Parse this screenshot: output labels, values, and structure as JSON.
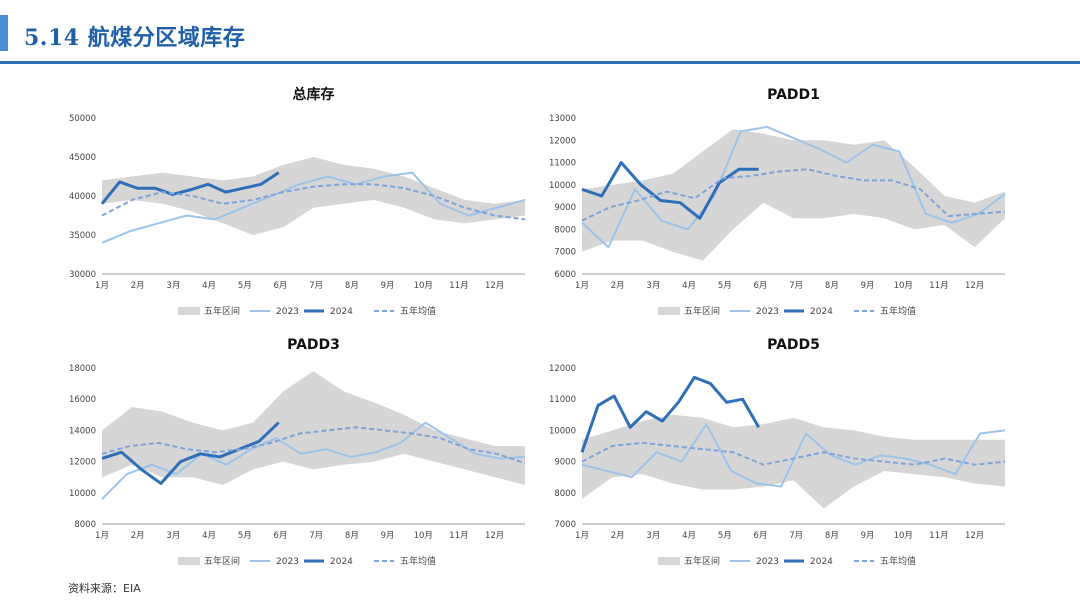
{
  "header": {
    "title": "5.14 航煤分区域库存"
  },
  "source": "资料来源：EIA",
  "legend_labels": [
    "五年区间",
    "2023",
    "2024",
    "五年均值"
  ],
  "colors": {
    "accent": "#1f5fa8",
    "band": "#d6d6d6",
    "s2023": "#9cc3e8",
    "s2024": "#2f6fb8",
    "avg": "#7ea3d8"
  },
  "chart_data": [
    {
      "type": "line",
      "title": "总库存",
      "x_labels": [
        "1月",
        "2月",
        "3月",
        "4月",
        "5月",
        "6月",
        "7月",
        "8月",
        "9月",
        "10月",
        "11月",
        "12月"
      ],
      "ylim": [
        30000,
        50000
      ],
      "yticks": [
        30000,
        35000,
        40000,
        45000,
        50000
      ],
      "band": {
        "name": "五年区间",
        "low": [
          39000,
          39500,
          39000,
          38000,
          36500,
          35000,
          36000,
          38500,
          39000,
          39500,
          38500,
          37000,
          36500,
          37000,
          37500
        ],
        "high": [
          42000,
          42500,
          43000,
          42500,
          42000,
          42500,
          44000,
          45000,
          44000,
          43500,
          42500,
          41000,
          39500,
          39000,
          39500
        ]
      },
      "series": [
        {
          "name": "2023",
          "values": [
            34000,
            35500,
            36500,
            37500,
            37000,
            38500,
            40000,
            41500,
            42500,
            41500,
            42500,
            43000,
            39000,
            37500,
            38500,
            39500
          ]
        },
        {
          "name": "2024",
          "values": [
            39000,
            41800,
            41000,
            41000,
            40200,
            40800,
            41500,
            40500,
            41000,
            41500,
            43000
          ]
        },
        {
          "name": "五年均值",
          "values": [
            37500,
            39500,
            40500,
            40000,
            39000,
            39500,
            40500,
            41200,
            41500,
            41500,
            41000,
            40000,
            38500,
            37500,
            37000
          ]
        }
      ]
    },
    {
      "type": "line",
      "title": "PADD1",
      "x_labels": [
        "1月",
        "2月",
        "3月",
        "4月",
        "5月",
        "6月",
        "7月",
        "8月",
        "9月",
        "10月",
        "11月",
        "12月"
      ],
      "ylim": [
        6000,
        13000
      ],
      "yticks": [
        6000,
        7000,
        8000,
        9000,
        10000,
        11000,
        12000,
        13000
      ],
      "band": {
        "name": "五年区间",
        "low": [
          7000,
          7500,
          7500,
          7000,
          6600,
          8000,
          9200,
          8500,
          8500,
          8700,
          8500,
          8000,
          8200,
          7200,
          8500
        ],
        "high": [
          9800,
          10000,
          10200,
          10500,
          11500,
          12500,
          12300,
          12000,
          12000,
          11800,
          12000,
          10800,
          9500,
          9200,
          9700
        ]
      },
      "series": [
        {
          "name": "2023",
          "values": [
            8300,
            7200,
            9800,
            8400,
            8000,
            9500,
            12400,
            12600,
            12100,
            11600,
            11000,
            11800,
            11500,
            8700,
            8300,
            8700,
            9600
          ]
        },
        {
          "name": "2024",
          "values": [
            9800,
            9500,
            11000,
            10000,
            9300,
            9200,
            8500,
            10100,
            10700,
            10700
          ]
        },
        {
          "name": "五年均值",
          "values": [
            8400,
            9000,
            9300,
            9700,
            9400,
            10300,
            10400,
            10600,
            10700,
            10400,
            10200,
            10200,
            9800,
            8600,
            8700,
            8800
          ]
        }
      ]
    },
    {
      "type": "line",
      "title": "PADD3",
      "x_labels": [
        "1月",
        "2月",
        "3月",
        "4月",
        "5月",
        "6月",
        "7月",
        "8月",
        "9月",
        "10月",
        "11月",
        "12月"
      ],
      "ylim": [
        8000,
        18000
      ],
      "yticks": [
        8000,
        10000,
        12000,
        14000,
        16000,
        18000
      ],
      "band": {
        "name": "五年区间",
        "low": [
          11000,
          11800,
          11000,
          11000,
          10500,
          11500,
          12000,
          11500,
          11800,
          12000,
          12500,
          12000,
          11500,
          11000,
          10500
        ],
        "high": [
          14000,
          15500,
          15200,
          14500,
          14000,
          14500,
          16500,
          17800,
          16500,
          15800,
          15000,
          14000,
          13500,
          13000,
          13000
        ]
      },
      "series": [
        {
          "name": "2023",
          "values": [
            9600,
            11200,
            11800,
            11200,
            12500,
            11800,
            12800,
            13500,
            12500,
            12800,
            12300,
            12600,
            13200,
            14500,
            13500,
            12500,
            12200,
            12300
          ]
        },
        {
          "name": "2024",
          "values": [
            12200,
            12600,
            11500,
            10600,
            12000,
            12500,
            12300,
            12800,
            13300,
            14500
          ]
        },
        {
          "name": "五年均值",
          "values": [
            12500,
            13000,
            13200,
            12800,
            12600,
            12800,
            13200,
            13800,
            14000,
            14200,
            14000,
            13800,
            13500,
            12800,
            12500,
            11900
          ]
        }
      ]
    },
    {
      "type": "line",
      "title": "PADD5",
      "x_labels": [
        "1月",
        "2月",
        "3月",
        "4月",
        "5月",
        "6月",
        "7月",
        "8月",
        "9月",
        "10月",
        "11月",
        "12月"
      ],
      "ylim": [
        7000,
        12000
      ],
      "yticks": [
        7000,
        8000,
        9000,
        10000,
        11000,
        12000
      ],
      "band": {
        "name": "五年区间",
        "low": [
          7800,
          8500,
          8600,
          8300,
          8100,
          8100,
          8200,
          8400,
          7500,
          8200,
          8700,
          8600,
          8500,
          8300,
          8200
        ],
        "high": [
          9700,
          10000,
          10300,
          10500,
          10400,
          10100,
          10200,
          10400,
          10100,
          10000,
          9800,
          9700,
          9700,
          9700,
          9700
        ]
      },
      "series": [
        {
          "name": "2023",
          "values": [
            8900,
            8700,
            8500,
            9300,
            9000,
            10200,
            8700,
            8300,
            8200,
            9900,
            9200,
            8900,
            9200,
            9100,
            8900,
            8600,
            9900,
            10000
          ]
        },
        {
          "name": "2024",
          "values": [
            9300,
            10800,
            11100,
            10100,
            10600,
            10300,
            10900,
            11700,
            11500,
            10900,
            11000,
            10100
          ]
        },
        {
          "name": "五年均值",
          "values": [
            9000,
            9500,
            9600,
            9500,
            9400,
            9300,
            8900,
            9100,
            9300,
            9100,
            9000,
            8900,
            9100,
            8900,
            9000
          ]
        }
      ]
    }
  ]
}
